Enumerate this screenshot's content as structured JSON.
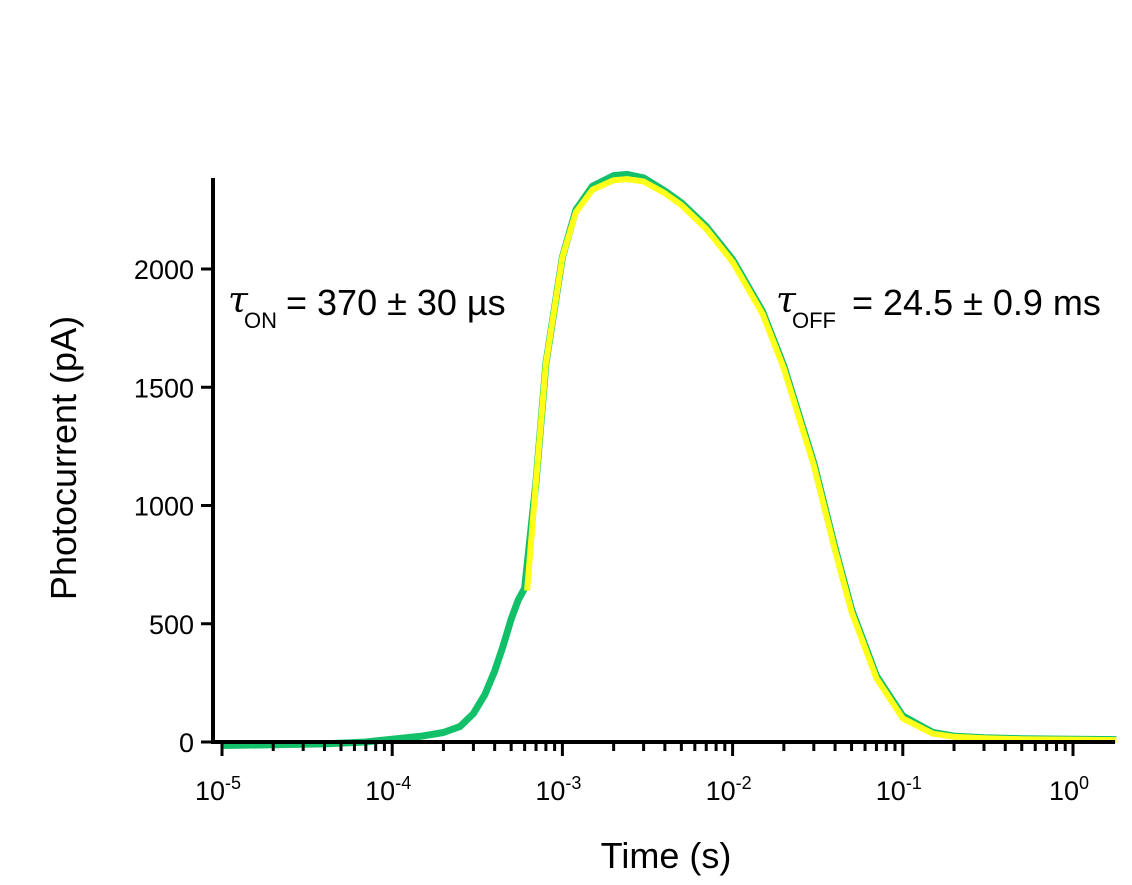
{
  "chart_data": {
    "type": "line",
    "xlabel": "Time (s)",
    "ylabel": "Photocurrent (pA)",
    "x_scale": "log",
    "xlim": [
      1e-05,
      1.8
    ],
    "ylim": [
      0,
      2400
    ],
    "x_ticks": [
      {
        "base": "10",
        "exp": "-5"
      },
      {
        "base": "10",
        "exp": "-4"
      },
      {
        "base": "10",
        "exp": "-3"
      },
      {
        "base": "10",
        "exp": "-2"
      },
      {
        "base": "10",
        "exp": "-1"
      },
      {
        "base": "10",
        "exp": "0"
      }
    ],
    "y_ticks": [
      "0",
      "500",
      "1000",
      "1500",
      "2000"
    ],
    "grid": false,
    "colors": {
      "data": "#13c06a",
      "fit": "#ffff1a",
      "axis": "#000000"
    },
    "series": [
      {
        "color": "#13c06a",
        "x": [
          1e-05,
          2e-05,
          4e-05,
          7e-05,
          0.0001,
          0.00015,
          0.0002,
          0.00025,
          0.0003,
          0.00035,
          0.0004,
          0.00045,
          0.0005,
          0.00055,
          0.0006,
          0.0007,
          0.0008,
          0.001,
          0.0012,
          0.0015,
          0.002,
          0.0024,
          0.003,
          0.004,
          0.005,
          0.007,
          0.01,
          0.015,
          0.02,
          0.03,
          0.04,
          0.05,
          0.07,
          0.1,
          0.15,
          0.2,
          0.3,
          0.5,
          1.0,
          1.8
        ],
        "y": [
          -15,
          -12,
          -8,
          0,
          12,
          25,
          40,
          65,
          120,
          200,
          300,
          410,
          520,
          600,
          650,
          1100,
          1600,
          2050,
          2250,
          2350,
          2395,
          2400,
          2385,
          2330,
          2280,
          2180,
          2040,
          1820,
          1590,
          1180,
          820,
          560,
          280,
          110,
          40,
          25,
          18,
          14,
          12,
          10
        ]
      },
      {
        "color": "#ffff1a",
        "x": [
          0.00062,
          0.0007,
          0.0008,
          0.001,
          0.0012,
          0.0015,
          0.002,
          0.0024,
          0.003,
          0.004,
          0.005,
          0.007,
          0.01,
          0.015,
          0.02,
          0.03,
          0.04,
          0.05,
          0.07,
          0.1,
          0.15,
          0.2,
          0.3,
          0.5,
          1.0,
          1.8
        ],
        "y": [
          640,
          1100,
          1600,
          2050,
          2240,
          2335,
          2375,
          2380,
          2370,
          2320,
          2270,
          2170,
          2030,
          1810,
          1580,
          1170,
          810,
          550,
          270,
          100,
          35,
          22,
          16,
          12,
          10,
          8
        ]
      }
    ],
    "annotations": [
      {
        "symbol": "τ",
        "sub": "ON",
        "text": "= 370 ± 30 µs"
      },
      {
        "symbol": "τ",
        "sub": "OFF",
        "text": "= 24.5 ± 0.9 ms"
      }
    ]
  }
}
